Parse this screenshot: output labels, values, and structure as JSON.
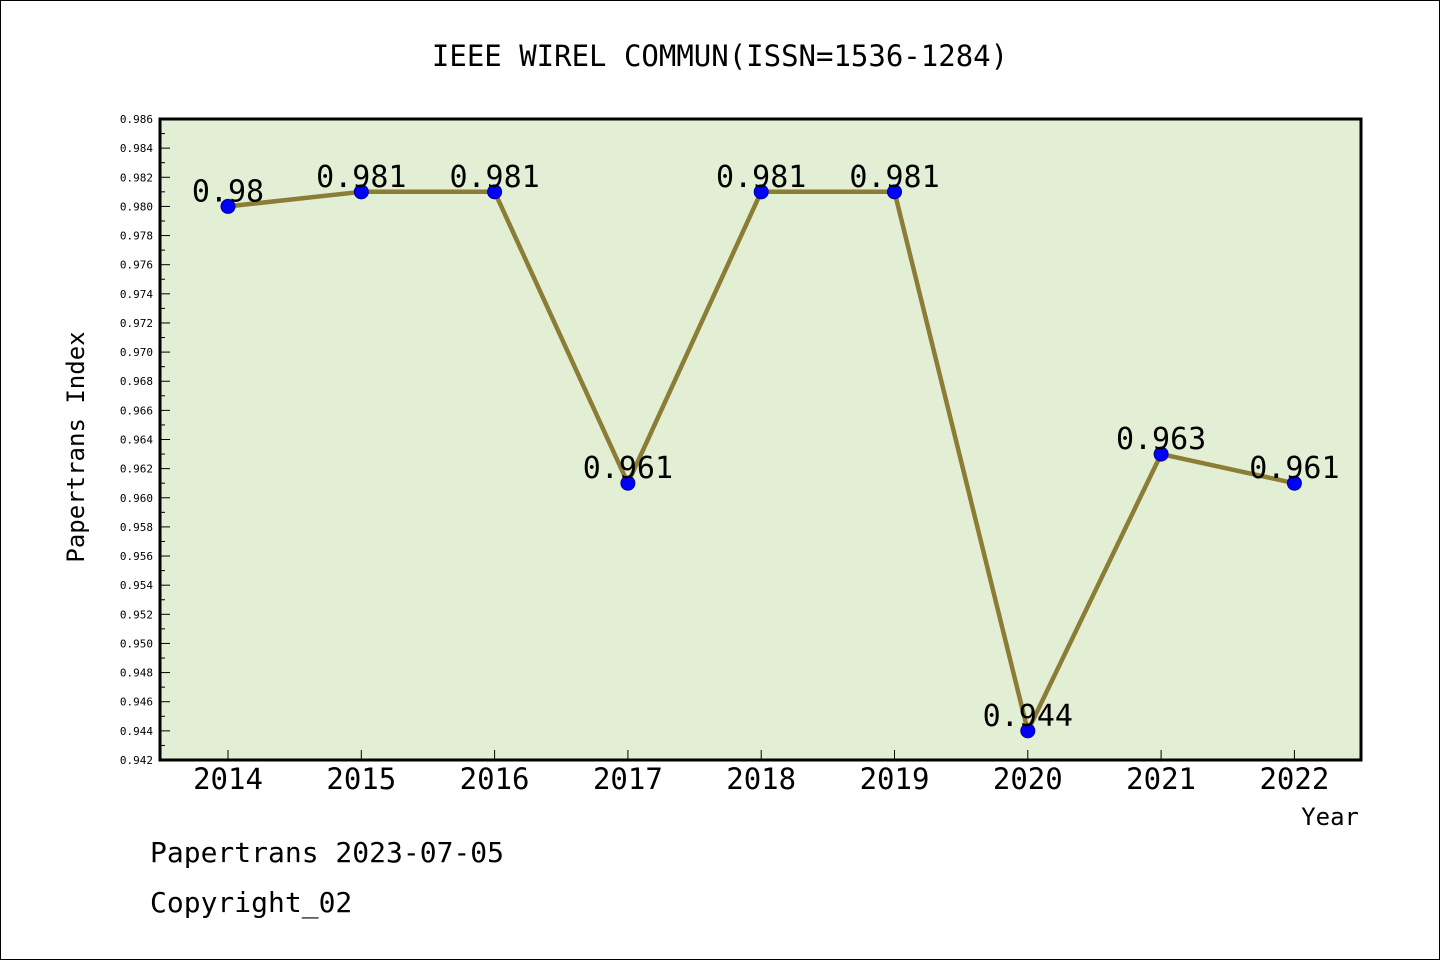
{
  "chart_data": {
    "type": "line",
    "title": "IEEE WIREL COMMUN(ISSN=1536-1284)",
    "xlabel": "Year",
    "ylabel": "Papertrans Index",
    "categories": [
      "2014",
      "2015",
      "2016",
      "2017",
      "2018",
      "2019",
      "2020",
      "2021",
      "2022"
    ],
    "series": [
      {
        "values": [
          0.98,
          0.981,
          0.981,
          0.961,
          0.981,
          0.981,
          0.944,
          0.963,
          0.961
        ],
        "data_labels": [
          "0.98",
          "0.981",
          "0.981",
          "0.961",
          "0.981",
          "0.981",
          "0.944",
          "0.963",
          "0.961"
        ]
      }
    ],
    "ylim": [
      0.942,
      0.986
    ],
    "ytick_step": 0.002,
    "grid": false,
    "colors": {
      "plot_background": "#e2efd5",
      "line": "#8b7d35",
      "marker": "#0000ff"
    }
  },
  "footer": {
    "line1": "Papertrans 2023-07-05",
    "line2": "Copyright_02"
  }
}
